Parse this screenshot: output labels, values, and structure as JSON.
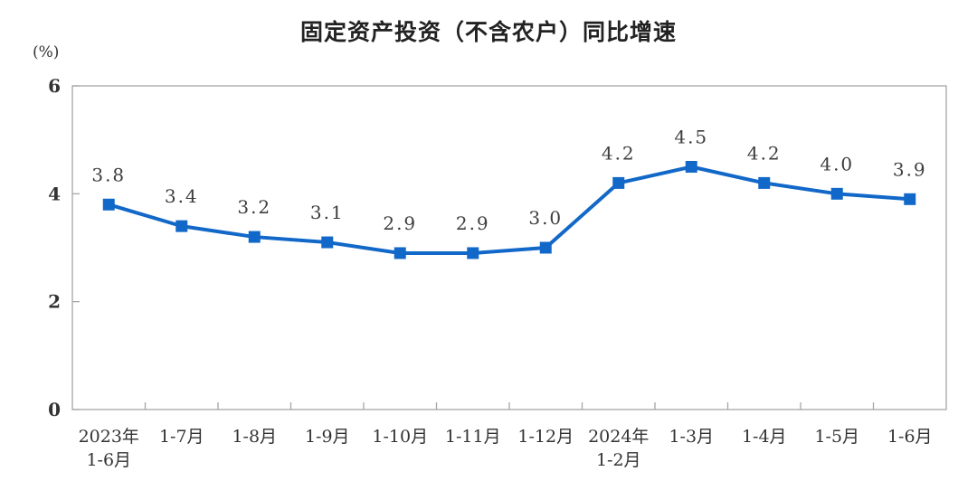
{
  "chart": {
    "title": "固定资产投资（不含农户）同比增速",
    "unit_label": "(%)"
  },
  "chart_data": {
    "type": "line",
    "title": "固定资产投资（不含农户）同比增速",
    "ylabel": "(%)",
    "xlabel": "",
    "categories": [
      "2023年\n1-6月",
      "1-7月",
      "1-8月",
      "1-9月",
      "1-10月",
      "1-11月",
      "1-12月",
      "2024年\n1-2月",
      "1-3月",
      "1-4月",
      "1-5月",
      "1-6月"
    ],
    "values": [
      3.8,
      3.4,
      3.2,
      3.1,
      2.9,
      2.9,
      3.0,
      4.2,
      4.5,
      4.2,
      4.0,
      3.9
    ],
    "ylim": [
      0,
      6
    ],
    "yticks": [
      0,
      2,
      4,
      6
    ],
    "grid": false,
    "legend": "none",
    "marker": "square",
    "line_color": "#1268c8",
    "axis_color": "#a6a6a6",
    "tick_label_color": "#333333",
    "data_label_color": "#3d3d3d"
  }
}
